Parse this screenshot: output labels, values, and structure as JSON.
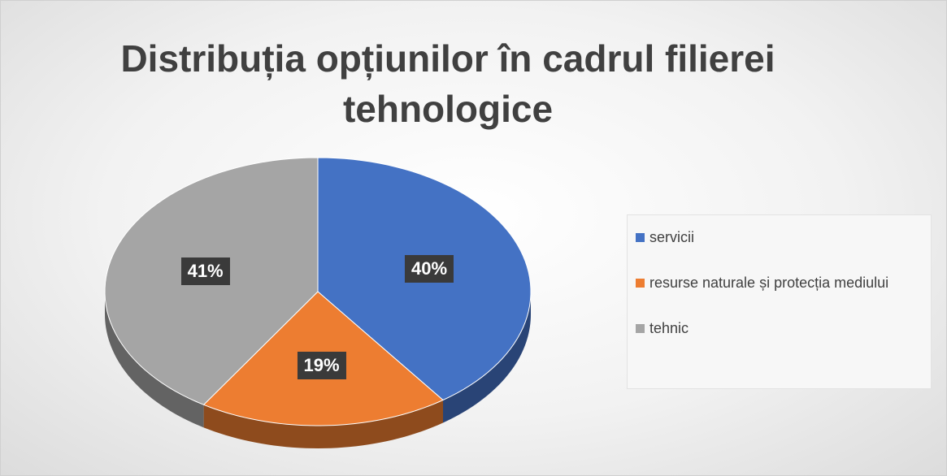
{
  "chart_data": {
    "type": "pie",
    "title": "Distribuția opțiunilor în cadrul filierei tehnologice",
    "categories": [
      "servicii",
      "resurse naturale și protecția mediului",
      "tehnic"
    ],
    "values": [
      40,
      19,
      41
    ],
    "value_labels": [
      "40%",
      "19%",
      "41%"
    ],
    "colors": [
      "#4472c4",
      "#ed7d31",
      "#a5a5a5"
    ],
    "legend": "right"
  }
}
